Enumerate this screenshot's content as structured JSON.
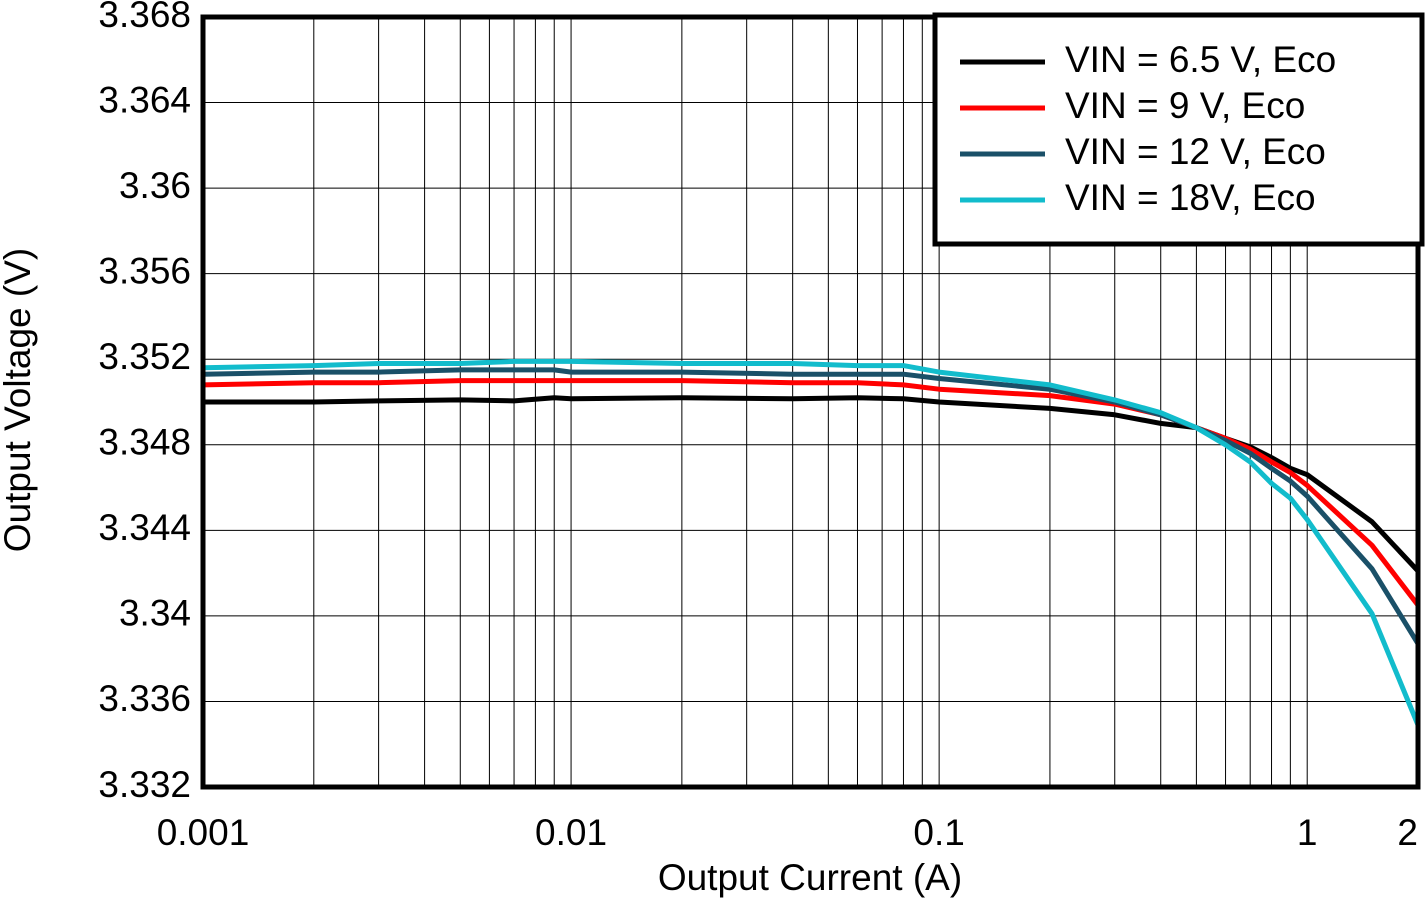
{
  "chart_data": {
    "type": "line",
    "x_label": "Output Current (A)",
    "y_label": "Output Voltage (V)",
    "x": [
      0.001,
      0.002,
      0.003,
      0.005,
      0.007,
      0.009,
      0.01,
      0.02,
      0.04,
      0.06,
      0.08,
      0.1,
      0.2,
      0.3,
      0.4,
      0.5,
      0.6,
      0.7,
      0.8,
      0.9,
      1,
      1.5,
      2
    ],
    "series": [
      {
        "name": "VIN = 6.5 V, Eco",
        "color": "#000000",
        "values": [
          3.35,
          3.35,
          3.35005,
          3.3501,
          3.35005,
          3.3502,
          3.35015,
          3.3502,
          3.35015,
          3.3502,
          3.35015,
          3.35,
          3.3497,
          3.3494,
          3.349,
          3.3488,
          3.3483,
          3.3479,
          3.3474,
          3.3469,
          3.3466,
          3.3444,
          3.3421
        ]
      },
      {
        "name": "VIN = 9 V, Eco",
        "color": "#ff0000",
        "values": [
          3.3508,
          3.3509,
          3.3509,
          3.351,
          3.351,
          3.351,
          3.351,
          3.351,
          3.3509,
          3.3509,
          3.3508,
          3.3506,
          3.3503,
          3.3499,
          3.3494,
          3.3488,
          3.3483,
          3.3478,
          3.3472,
          3.3467,
          3.3461,
          3.3433,
          3.3405
        ]
      },
      {
        "name": "VIN = 12 V, Eco",
        "color": "#1a5068",
        "values": [
          3.3513,
          3.3514,
          3.3514,
          3.3515,
          3.3515,
          3.3515,
          3.3514,
          3.3514,
          3.3513,
          3.3513,
          3.3513,
          3.3511,
          3.3506,
          3.35,
          3.3494,
          3.3488,
          3.3482,
          3.3476,
          3.3469,
          3.3463,
          3.3456,
          3.3422,
          3.3387
        ]
      },
      {
        "name": "VIN = 18V, Eco",
        "color": "#12bccc",
        "values": [
          3.3516,
          3.3517,
          3.3518,
          3.3518,
          3.3519,
          3.3519,
          3.3519,
          3.3518,
          3.3518,
          3.3517,
          3.3517,
          3.3514,
          3.3508,
          3.3501,
          3.3495,
          3.3488,
          3.348,
          3.3472,
          3.3462,
          3.3455,
          3.3445,
          3.3401,
          3.3349
        ]
      }
    ],
    "xlim": [
      0.001,
      2
    ],
    "ylim": [
      3.332,
      3.368
    ],
    "log_x": true,
    "xticks": [
      0.001,
      0.01,
      0.1,
      1,
      2
    ],
    "xminor": [
      0.002,
      0.003,
      0.004,
      0.005,
      0.006,
      0.007,
      0.008,
      0.009,
      0.02,
      0.03,
      0.04,
      0.05,
      0.06,
      0.07,
      0.08,
      0.09,
      0.2,
      0.3,
      0.4,
      0.5,
      0.6,
      0.7,
      0.8,
      0.9
    ],
    "yticks": [
      3.332,
      3.336,
      3.34,
      3.344,
      3.348,
      3.352,
      3.356,
      3.36,
      3.364,
      3.368
    ],
    "grid": true,
    "legend": "top-right"
  }
}
